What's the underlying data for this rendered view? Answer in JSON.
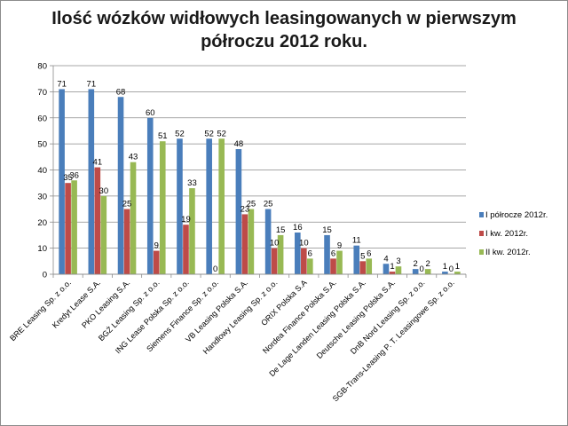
{
  "chart_data": {
    "type": "bar",
    "title_line1": "Ilość wózków widłowych leasingowanych w pierwszym",
    "title_line2": "półroczu 2012 roku.",
    "categories": [
      "BRE Leasing Sp. z o.o.",
      "Kredyt Lease S.A.",
      "PKO Leasing S.A.",
      "BGŻ Leasing Sp. z o.o.",
      "ING Lease Polska Sp. z o.o.",
      "Siemens Finance Sp. z o.o.",
      "VB Leasing Polska S.A.",
      "Handlowy Leasing Sp. z o.o.",
      "ORIX Polska S.A",
      "Nordea Finance Polska S.A.",
      "De Lage Landen Leasing Polska S.A.",
      "Deutsche Leasing Polska S.A.",
      "DnB Nord Leasing Sp. z o.o.",
      "SGB-Trans-Leasing P. T. Leasingowe Sp. z o.o."
    ],
    "series": [
      {
        "name": "I półrocze 2012r.",
        "color": "#4a7ebb",
        "values": [
          71,
          71,
          68,
          60,
          52,
          52,
          48,
          25,
          16,
          15,
          11,
          4,
          2,
          1
        ]
      },
      {
        "name": "I kw. 2012r.",
        "color": "#be4b48",
        "values": [
          35,
          41,
          25,
          9,
          19,
          0,
          23,
          10,
          10,
          6,
          5,
          1,
          0,
          0
        ]
      },
      {
        "name": "II kw. 2012r.",
        "color": "#98b954",
        "values": [
          36,
          30,
          43,
          51,
          33,
          52,
          25,
          15,
          6,
          9,
          6,
          3,
          2,
          1
        ]
      }
    ],
    "data_labels": [
      [
        "71",
        "71",
        "68",
        "60",
        "52",
        "52",
        "48",
        "25",
        "16",
        "15",
        "11",
        "4",
        "2",
        "1"
      ],
      [
        "35",
        "41",
        "25",
        "9",
        "19",
        "0",
        "23",
        "10",
        "10",
        "6",
        "5",
        "1",
        "0",
        "0"
      ],
      [
        "36",
        "30",
        "43",
        "51",
        "33",
        "52",
        "25",
        "15",
        "6",
        "9",
        "6",
        "3",
        "2",
        "1"
      ]
    ],
    "ylim": [
      0,
      80
    ],
    "yticks": [
      "0",
      "10",
      "20",
      "30",
      "40",
      "50",
      "60",
      "70",
      "80"
    ],
    "grid": true,
    "legend_position": "right"
  }
}
